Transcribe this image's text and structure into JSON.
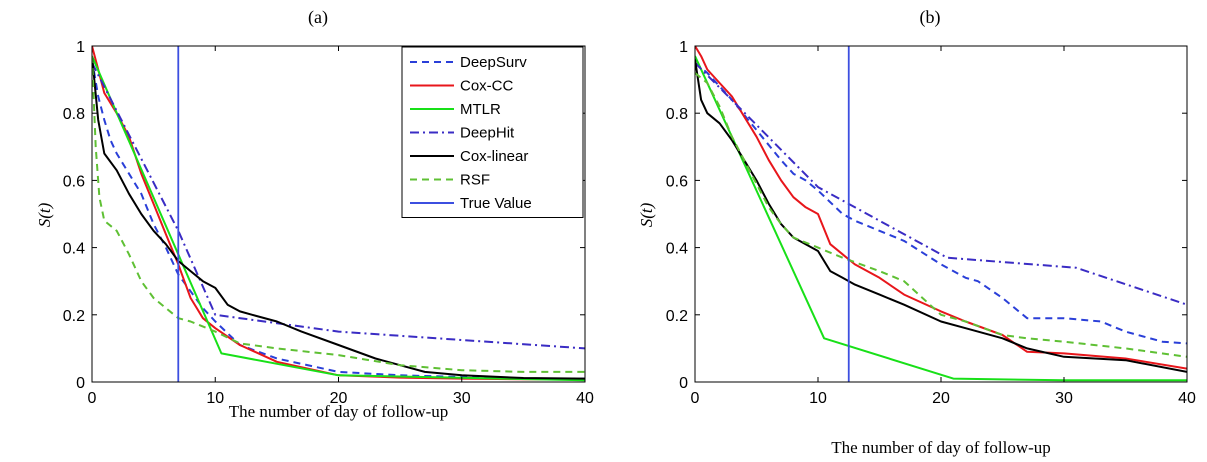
{
  "figure": {
    "panels": [
      "(a)",
      "(b)"
    ]
  },
  "legend": [
    "DeepSurv",
    "Cox-CC",
    "MTLR",
    "DeepHit",
    "Cox-linear",
    "RSF",
    "True Value"
  ],
  "chart_data": [
    {
      "type": "line",
      "title": "(a)",
      "xlabel": "The number of day of follow-up",
      "ylabel": "S(t)",
      "xlim": [
        0,
        40
      ],
      "ylim": [
        0,
        1
      ],
      "xticks": [
        0,
        10,
        20,
        30,
        40
      ],
      "yticks": [
        0,
        0.2,
        0.4,
        0.6,
        0.8,
        1
      ],
      "ytick_labels": [
        "0",
        "0.2",
        "0.4",
        "0.6",
        "0.8",
        "1"
      ],
      "grid": false,
      "legend_position": "top-right",
      "true_value": 7,
      "series": [
        {
          "name": "DeepSurv",
          "color": "#2a3fd8",
          "style": "dashed",
          "x": [
            0,
            0.5,
            1,
            1.5,
            2,
            3,
            4,
            5,
            6,
            7,
            8,
            9,
            10,
            12,
            15,
            20,
            25,
            30,
            35,
            40
          ],
          "y": [
            0.96,
            0.85,
            0.78,
            0.72,
            0.68,
            0.62,
            0.56,
            0.47,
            0.4,
            0.32,
            0.27,
            0.22,
            0.18,
            0.11,
            0.07,
            0.03,
            0.02,
            0.015,
            0.01,
            0.01
          ]
        },
        {
          "name": "Cox-CC",
          "color": "#e8161b",
          "style": "solid",
          "x": [
            0,
            0.5,
            1,
            2,
            3,
            4,
            5,
            6,
            7,
            7.5,
            8,
            8.5,
            9,
            10,
            12,
            15,
            20,
            25,
            30,
            35,
            40
          ],
          "y": [
            1,
            0.93,
            0.86,
            0.8,
            0.73,
            0.62,
            0.53,
            0.44,
            0.35,
            0.3,
            0.25,
            0.22,
            0.19,
            0.16,
            0.11,
            0.06,
            0.02,
            0.013,
            0.01,
            0.008,
            0.008
          ]
        },
        {
          "name": "MTLR",
          "color": "#18e018",
          "style": "solid",
          "x": [
            0,
            10.5,
            20,
            40
          ],
          "y": [
            0.97,
            0.085,
            0.02,
            0.005
          ]
        },
        {
          "name": "DeepHit",
          "color": "#3a2cc4",
          "style": "dashdot",
          "x": [
            0,
            7,
            10,
            20,
            30,
            40
          ],
          "y": [
            0.95,
            0.45,
            0.2,
            0.15,
            0.125,
            0.1
          ]
        },
        {
          "name": "Cox-linear",
          "color": "#000000",
          "style": "solid",
          "x": [
            0,
            0.5,
            1,
            2,
            3,
            4,
            5,
            6,
            7,
            8,
            9,
            10,
            11,
            12,
            13,
            15,
            17,
            20,
            23,
            25,
            27,
            30,
            35,
            40
          ],
          "y": [
            0.97,
            0.78,
            0.68,
            0.63,
            0.56,
            0.5,
            0.45,
            0.41,
            0.36,
            0.33,
            0.3,
            0.28,
            0.23,
            0.21,
            0.2,
            0.18,
            0.15,
            0.11,
            0.07,
            0.05,
            0.03,
            0.02,
            0.012,
            0.01
          ]
        },
        {
          "name": "RSF",
          "color": "#5fc034",
          "style": "dashed",
          "x": [
            0,
            0.3,
            0.6,
            1,
            2,
            3,
            4,
            5,
            6,
            7,
            8,
            10,
            12,
            15,
            20,
            25,
            30,
            35,
            40
          ],
          "y": [
            0.97,
            0.7,
            0.55,
            0.48,
            0.45,
            0.38,
            0.3,
            0.25,
            0.22,
            0.19,
            0.18,
            0.15,
            0.115,
            0.1,
            0.08,
            0.05,
            0.035,
            0.03,
            0.03
          ]
        }
      ]
    },
    {
      "type": "line",
      "title": "(b)",
      "xlabel": "The number of day of follow-up",
      "ylabel": "S(t)",
      "xlim": [
        0,
        40
      ],
      "ylim": [
        0,
        1
      ],
      "xticks": [
        0,
        10,
        20,
        30,
        40
      ],
      "yticks": [
        0,
        0.2,
        0.4,
        0.6,
        0.8,
        1
      ],
      "ytick_labels": [
        "0",
        "0.2",
        "0.4",
        "0.6",
        "0.8",
        "1"
      ],
      "grid": false,
      "true_value": 12.5,
      "series": [
        {
          "name": "DeepSurv",
          "color": "#2a3fd8",
          "style": "dashed",
          "x": [
            0,
            1,
            3,
            5,
            7,
            8,
            9,
            10,
            12,
            13,
            15,
            17,
            20,
            22,
            23,
            25,
            27,
            30,
            33,
            35,
            38,
            40
          ],
          "y": [
            0.95,
            0.92,
            0.84,
            0.75,
            0.66,
            0.62,
            0.6,
            0.57,
            0.5,
            0.48,
            0.45,
            0.42,
            0.35,
            0.31,
            0.3,
            0.25,
            0.19,
            0.19,
            0.18,
            0.15,
            0.12,
            0.115
          ]
        },
        {
          "name": "Cox-CC",
          "color": "#e8161b",
          "style": "solid",
          "x": [
            0,
            0.5,
            1,
            2,
            3,
            4,
            5,
            6,
            7,
            8,
            9,
            10,
            11,
            12,
            13,
            15,
            17,
            20,
            22,
            25,
            27,
            30,
            35,
            40
          ],
          "y": [
            1,
            0.97,
            0.93,
            0.89,
            0.85,
            0.79,
            0.73,
            0.66,
            0.6,
            0.55,
            0.52,
            0.5,
            0.41,
            0.38,
            0.35,
            0.31,
            0.26,
            0.21,
            0.18,
            0.14,
            0.09,
            0.085,
            0.07,
            0.04
          ]
        },
        {
          "name": "MTLR",
          "color": "#18e018",
          "style": "solid",
          "x": [
            0,
            10.5,
            21,
            30,
            40
          ],
          "y": [
            0.97,
            0.13,
            0.01,
            0.005,
            0.005
          ]
        },
        {
          "name": "DeepHit",
          "color": "#3a2cc4",
          "style": "dashdot",
          "x": [
            0,
            10,
            20.5,
            31,
            40
          ],
          "y": [
            0.95,
            0.58,
            0.37,
            0.34,
            0.23
          ]
        },
        {
          "name": "Cox-linear",
          "color": "#000000",
          "style": "solid",
          "x": [
            0,
            0.5,
            1,
            2,
            3,
            4,
            5,
            6,
            7,
            8,
            9,
            10,
            11,
            12,
            13,
            15,
            17,
            20,
            22,
            25,
            27,
            30,
            35,
            40
          ],
          "y": [
            0.96,
            0.84,
            0.8,
            0.77,
            0.72,
            0.66,
            0.6,
            0.53,
            0.47,
            0.43,
            0.41,
            0.39,
            0.33,
            0.31,
            0.29,
            0.26,
            0.23,
            0.18,
            0.16,
            0.13,
            0.1,
            0.075,
            0.065,
            0.03
          ]
        },
        {
          "name": "RSF",
          "color": "#5fc034",
          "style": "dashed",
          "x": [
            0,
            1,
            2,
            3,
            4,
            5,
            6,
            7,
            8,
            10,
            12,
            15,
            17,
            20,
            22,
            25,
            27,
            30,
            35,
            40
          ],
          "y": [
            0.92,
            0.89,
            0.82,
            0.73,
            0.66,
            0.59,
            0.52,
            0.47,
            0.43,
            0.4,
            0.37,
            0.33,
            0.3,
            0.2,
            0.18,
            0.14,
            0.13,
            0.12,
            0.1,
            0.075
          ]
        }
      ]
    }
  ]
}
